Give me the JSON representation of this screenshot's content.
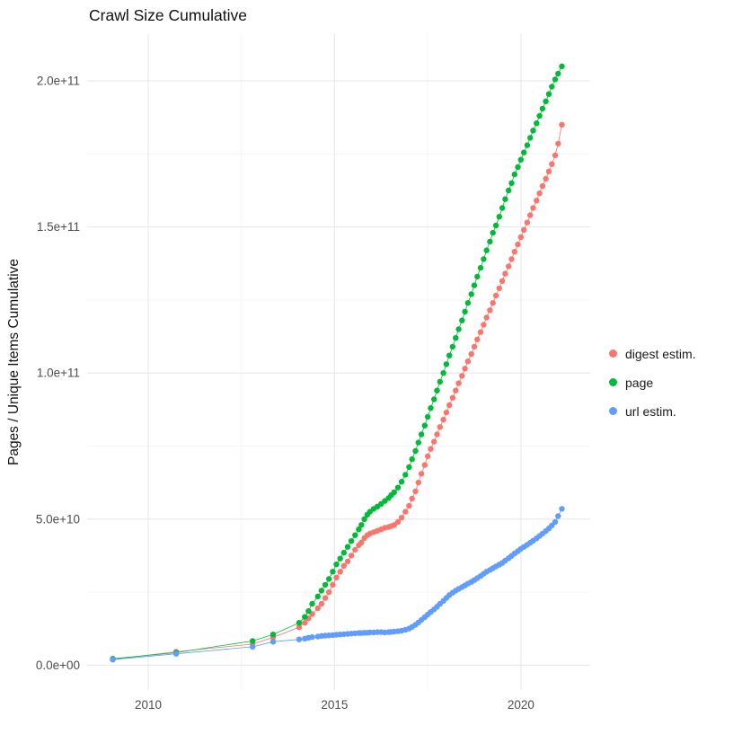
{
  "chart_data": {
    "type": "line-scatter",
    "title": "Crawl Size Cumulative",
    "xlabel": "",
    "ylabel": "Pages / Unique Items Cumulative",
    "y_unit": 1000000000,
    "note_units": "series point y-values are in billions (multiply by y_unit for absolute counts)",
    "xlim": [
      2008.36,
      2021.86
    ],
    "ylim": [
      -8.5,
      216
    ],
    "x_ticks": [
      2010,
      2015,
      2020
    ],
    "x_tick_labels": [
      "2010",
      "2015",
      "2020"
    ],
    "x_minor_ticks": [
      2012.5,
      2017.5
    ],
    "y_ticks": [
      0,
      50,
      100,
      150,
      200
    ],
    "y_tick_labels": [
      "0.0e+00",
      "5.0e+10",
      "1.0e+11",
      "1.5e+11",
      "2.0e+11"
    ],
    "y_minor_ticks": [
      25,
      75,
      125,
      175
    ],
    "grid": {
      "show": true,
      "major_color": "#e9e9e9",
      "minor_color": "#f4f4f4"
    },
    "legend_position": "right",
    "series": [
      {
        "name": "digest estim.",
        "color": "#F8766D",
        "points": [
          [
            2009.05,
            2.0
          ],
          [
            2010.75,
            4.6
          ],
          [
            2012.8,
            7.2
          ],
          [
            2013.35,
            9.5
          ],
          [
            2014.05,
            13
          ],
          [
            2014.2,
            14.5
          ],
          [
            2014.3,
            16
          ],
          [
            2014.4,
            17.5
          ],
          [
            2014.55,
            19.5
          ],
          [
            2014.65,
            21
          ],
          [
            2014.75,
            23
          ],
          [
            2014.85,
            25
          ],
          [
            2014.95,
            27.5
          ],
          [
            2015.05,
            30
          ],
          [
            2015.15,
            32
          ],
          [
            2015.25,
            34
          ],
          [
            2015.35,
            35.5
          ],
          [
            2015.45,
            37.5
          ],
          [
            2015.55,
            39.5
          ],
          [
            2015.65,
            41
          ],
          [
            2015.72,
            42
          ],
          [
            2015.8,
            43.5
          ],
          [
            2015.88,
            44.5
          ],
          [
            2015.95,
            45
          ],
          [
            2016.05,
            45.5
          ],
          [
            2016.15,
            46
          ],
          [
            2016.25,
            46.5
          ],
          [
            2016.35,
            47
          ],
          [
            2016.45,
            47.3
          ],
          [
            2016.52,
            47.6
          ],
          [
            2016.6,
            48
          ],
          [
            2016.7,
            49
          ],
          [
            2016.8,
            50.5
          ],
          [
            2016.9,
            52.5
          ],
          [
            2017.0,
            54.5
          ],
          [
            2017.08,
            57
          ],
          [
            2017.17,
            59.5
          ],
          [
            2017.25,
            62.5
          ],
          [
            2017.33,
            65.5
          ],
          [
            2017.42,
            68.5
          ],
          [
            2017.5,
            71.5
          ],
          [
            2017.58,
            74
          ],
          [
            2017.67,
            76.5
          ],
          [
            2017.75,
            79
          ],
          [
            2017.83,
            81.5
          ],
          [
            2017.92,
            84
          ],
          [
            2018.0,
            86.5
          ],
          [
            2018.08,
            89
          ],
          [
            2018.17,
            91.5
          ],
          [
            2018.25,
            94
          ],
          [
            2018.33,
            96.5
          ],
          [
            2018.42,
            99
          ],
          [
            2018.5,
            101.5
          ],
          [
            2018.58,
            104
          ],
          [
            2018.67,
            106.5
          ],
          [
            2018.75,
            109
          ],
          [
            2018.83,
            111.5
          ],
          [
            2018.92,
            114
          ],
          [
            2019.0,
            116.5
          ],
          [
            2019.08,
            119
          ],
          [
            2019.17,
            121.5
          ],
          [
            2019.25,
            124
          ],
          [
            2019.33,
            126.5
          ],
          [
            2019.42,
            129
          ],
          [
            2019.5,
            131.5
          ],
          [
            2019.58,
            134
          ],
          [
            2019.67,
            136.5
          ],
          [
            2019.75,
            139
          ],
          [
            2019.83,
            141.5
          ],
          [
            2019.92,
            144
          ],
          [
            2020.0,
            146.5
          ],
          [
            2020.08,
            149
          ],
          [
            2020.17,
            151.5
          ],
          [
            2020.25,
            154
          ],
          [
            2020.33,
            156.5
          ],
          [
            2020.42,
            159
          ],
          [
            2020.5,
            161.5
          ],
          [
            2020.58,
            164
          ],
          [
            2020.67,
            166.5
          ],
          [
            2020.75,
            169
          ],
          [
            2020.83,
            171.5
          ],
          [
            2020.92,
            174.5
          ],
          [
            2021.0,
            178.5
          ],
          [
            2021.1,
            185
          ]
        ]
      },
      {
        "name": "page",
        "color": "#00BA38",
        "points": [
          [
            2009.05,
            2.2
          ],
          [
            2010.75,
            4.3
          ],
          [
            2012.8,
            8.3
          ],
          [
            2013.35,
            10.5
          ],
          [
            2014.05,
            14.5
          ],
          [
            2014.2,
            16.5
          ],
          [
            2014.3,
            18.5
          ],
          [
            2014.4,
            21
          ],
          [
            2014.55,
            23.5
          ],
          [
            2014.65,
            25.5
          ],
          [
            2014.75,
            27.5
          ],
          [
            2014.85,
            29.5
          ],
          [
            2014.95,
            32
          ],
          [
            2015.05,
            34.5
          ],
          [
            2015.15,
            36.5
          ],
          [
            2015.25,
            38.5
          ],
          [
            2015.35,
            40.5
          ],
          [
            2015.45,
            42.5
          ],
          [
            2015.55,
            44.5
          ],
          [
            2015.65,
            46.5
          ],
          [
            2015.72,
            48
          ],
          [
            2015.8,
            50
          ],
          [
            2015.88,
            51.5
          ],
          [
            2015.95,
            52.5
          ],
          [
            2016.05,
            53.5
          ],
          [
            2016.15,
            54.3
          ],
          [
            2016.25,
            55.2
          ],
          [
            2016.35,
            56.2
          ],
          [
            2016.45,
            57.2
          ],
          [
            2016.52,
            58.2
          ],
          [
            2016.6,
            59.2
          ],
          [
            2016.7,
            60.8
          ],
          [
            2016.8,
            62.8
          ],
          [
            2016.9,
            65.2
          ],
          [
            2017.0,
            67.8
          ],
          [
            2017.08,
            70.5
          ],
          [
            2017.17,
            73.3
          ],
          [
            2017.25,
            76.2
          ],
          [
            2017.33,
            79
          ],
          [
            2017.42,
            82
          ],
          [
            2017.5,
            85
          ],
          [
            2017.58,
            88
          ],
          [
            2017.67,
            91
          ],
          [
            2017.75,
            94
          ],
          [
            2017.83,
            97
          ],
          [
            2017.92,
            100
          ],
          [
            2018.0,
            103
          ],
          [
            2018.08,
            106
          ],
          [
            2018.17,
            109
          ],
          [
            2018.25,
            112
          ],
          [
            2018.33,
            115
          ],
          [
            2018.42,
            118
          ],
          [
            2018.5,
            121
          ],
          [
            2018.58,
            124
          ],
          [
            2018.67,
            127
          ],
          [
            2018.75,
            130
          ],
          [
            2018.83,
            133
          ],
          [
            2018.92,
            136
          ],
          [
            2019.0,
            139
          ],
          [
            2019.08,
            142
          ],
          [
            2019.17,
            145
          ],
          [
            2019.25,
            148
          ],
          [
            2019.33,
            150.5
          ],
          [
            2019.42,
            153.5
          ],
          [
            2019.5,
            156.5
          ],
          [
            2019.58,
            159.5
          ],
          [
            2019.67,
            162.5
          ],
          [
            2019.75,
            165
          ],
          [
            2019.83,
            168
          ],
          [
            2019.92,
            170.5
          ],
          [
            2020.0,
            173
          ],
          [
            2020.08,
            175.5
          ],
          [
            2020.17,
            178
          ],
          [
            2020.25,
            180.5
          ],
          [
            2020.33,
            183
          ],
          [
            2020.42,
            185.5
          ],
          [
            2020.5,
            188
          ],
          [
            2020.58,
            190.5
          ],
          [
            2020.67,
            193
          ],
          [
            2020.75,
            195.5
          ],
          [
            2020.83,
            198
          ],
          [
            2020.92,
            200.5
          ],
          [
            2021.0,
            202.5
          ],
          [
            2021.1,
            205
          ]
        ]
      },
      {
        "name": "url estim.",
        "color": "#619CFF",
        "points": [
          [
            2009.05,
            1.9
          ],
          [
            2010.75,
            3.9
          ],
          [
            2012.8,
            6.3
          ],
          [
            2013.35,
            8.0
          ],
          [
            2014.05,
            8.8
          ],
          [
            2014.2,
            9.1
          ],
          [
            2014.3,
            9.4
          ],
          [
            2014.4,
            9.6
          ],
          [
            2014.55,
            9.8
          ],
          [
            2014.65,
            10.0
          ],
          [
            2014.75,
            10.1
          ],
          [
            2014.85,
            10.2
          ],
          [
            2014.95,
            10.3
          ],
          [
            2015.05,
            10.4
          ],
          [
            2015.15,
            10.5
          ],
          [
            2015.25,
            10.6
          ],
          [
            2015.35,
            10.7
          ],
          [
            2015.45,
            10.8
          ],
          [
            2015.55,
            10.9
          ],
          [
            2015.65,
            11.0
          ],
          [
            2015.72,
            11.0
          ],
          [
            2015.8,
            11.1
          ],
          [
            2015.88,
            11.1
          ],
          [
            2015.95,
            11.2
          ],
          [
            2016.05,
            11.2
          ],
          [
            2016.15,
            11.3
          ],
          [
            2016.25,
            11.3
          ],
          [
            2016.35,
            11.2
          ],
          [
            2016.45,
            11.3
          ],
          [
            2016.52,
            11.4
          ],
          [
            2016.6,
            11.5
          ],
          [
            2016.7,
            11.6
          ],
          [
            2016.8,
            11.8
          ],
          [
            2016.9,
            12.1
          ],
          [
            2017.0,
            12.5
          ],
          [
            2017.08,
            13.1
          ],
          [
            2017.17,
            13.8
          ],
          [
            2017.25,
            14.6
          ],
          [
            2017.33,
            15.5
          ],
          [
            2017.42,
            16.4
          ],
          [
            2017.5,
            17.3
          ],
          [
            2017.58,
            18.2
          ],
          [
            2017.67,
            19.1
          ],
          [
            2017.75,
            20
          ],
          [
            2017.83,
            21
          ],
          [
            2017.92,
            22
          ],
          [
            2018.0,
            23
          ],
          [
            2018.08,
            24
          ],
          [
            2018.17,
            24.8
          ],
          [
            2018.25,
            25.5
          ],
          [
            2018.33,
            26.1
          ],
          [
            2018.42,
            26.7
          ],
          [
            2018.5,
            27.3
          ],
          [
            2018.58,
            27.9
          ],
          [
            2018.67,
            28.5
          ],
          [
            2018.75,
            29.1
          ],
          [
            2018.83,
            29.8
          ],
          [
            2018.92,
            30.5
          ],
          [
            2019.0,
            31.3
          ],
          [
            2019.08,
            32
          ],
          [
            2019.17,
            32.6
          ],
          [
            2019.25,
            33.2
          ],
          [
            2019.33,
            33.8
          ],
          [
            2019.42,
            34.4
          ],
          [
            2019.5,
            35
          ],
          [
            2019.58,
            35.8
          ],
          [
            2019.67,
            36.6
          ],
          [
            2019.75,
            37.4
          ],
          [
            2019.83,
            38.2
          ],
          [
            2019.92,
            39
          ],
          [
            2020.0,
            39.8
          ],
          [
            2020.08,
            40.5
          ],
          [
            2020.17,
            41.2
          ],
          [
            2020.25,
            41.9
          ],
          [
            2020.33,
            42.6
          ],
          [
            2020.42,
            43.4
          ],
          [
            2020.5,
            44.2
          ],
          [
            2020.58,
            45
          ],
          [
            2020.67,
            45.9
          ],
          [
            2020.75,
            46.8
          ],
          [
            2020.83,
            47.8
          ],
          [
            2020.92,
            49
          ],
          [
            2021.0,
            51
          ],
          [
            2021.1,
            53.5
          ]
        ]
      }
    ]
  }
}
